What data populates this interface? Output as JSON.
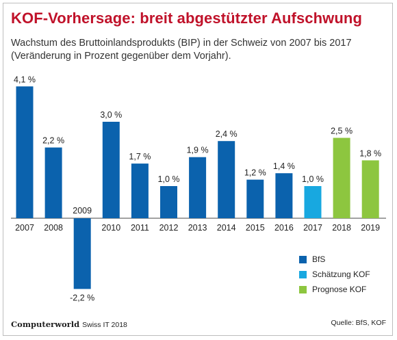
{
  "header": {
    "title": "KOF-Vorhersage: breit abgestützter Aufschwung",
    "subtitle_line1": "Wachstum des Bruttoinlandsprodukts (BIP) in der Schweiz  von 2007 bis 2017",
    "subtitle_line2": "(Veränderung in Prozent gegenüber dem Vorjahr)."
  },
  "colors": {
    "title": "#c0122a",
    "BfS": "#0b62ad",
    "Schätzung KOF": "#18a8e0",
    "Prognose KOF": "#8dc63f"
  },
  "chart_data": {
    "type": "bar",
    "categories": [
      "2007",
      "2008",
      "2009",
      "2010",
      "2011",
      "2012",
      "2013",
      "2014",
      "2015",
      "2016",
      "2017",
      "2018",
      "2019"
    ],
    "values": [
      4.1,
      2.2,
      -2.2,
      3.0,
      1.7,
      1.0,
      1.9,
      2.4,
      1.2,
      1.4,
      1.0,
      2.5,
      1.8
    ],
    "data_labels": [
      "4,1 %",
      "2,2 %",
      "-2,2 %",
      "3,0 %",
      "1,7 %",
      "1,0 %",
      "1,9 %",
      "2,4 %",
      "1,2 %",
      "1,4 %",
      "1,0 %",
      "2,5 %",
      "1,8 %"
    ],
    "series_group": [
      "BfS",
      "BfS",
      "BfS",
      "BfS",
      "BfS",
      "BfS",
      "BfS",
      "BfS",
      "BfS",
      "BfS",
      "Schätzung KOF",
      "Prognose KOF",
      "Prognose KOF"
    ],
    "legend": [
      "BfS",
      "Schätzung KOF",
      "Prognose KOF"
    ],
    "legend_position": "bottom-right",
    "ylim": [
      -2.2,
      4.1
    ],
    "grid": false
  },
  "footer": {
    "brand": "Computerworld",
    "issue": "Swiss IT 2018",
    "source": "Quelle: BfS, KOF"
  }
}
